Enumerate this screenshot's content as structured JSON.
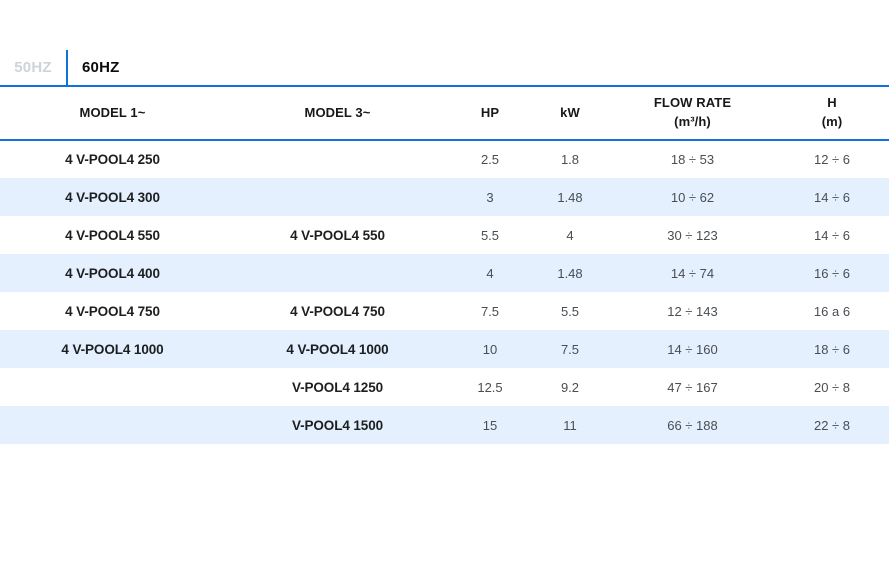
{
  "colors": {
    "accent_blue": "#0e74dc",
    "row_stripe": "#e4f0fd",
    "inactive_tab_gray": "#ccd4da",
    "text_dark": "#17181a"
  },
  "tabs": {
    "inactive": {
      "label": "50HZ"
    },
    "active": {
      "label": "60HZ"
    }
  },
  "table": {
    "columns": [
      {
        "label": "MODEL 1~",
        "sub": ""
      },
      {
        "label": "MODEL 3~",
        "sub": ""
      },
      {
        "label": "HP",
        "sub": ""
      },
      {
        "label": "kW",
        "sub": ""
      },
      {
        "label": "FLOW RATE",
        "sub": "(m³/h)"
      },
      {
        "label": "H",
        "sub": "(m)"
      }
    ],
    "rows": [
      [
        "4 V-POOL4 250",
        "",
        "2.5",
        "1.8",
        "18 ÷ 53",
        "12 ÷ 6"
      ],
      [
        "4 V-POOL4 300",
        "",
        "3",
        "1.48",
        "10 ÷ 62",
        "14 ÷ 6"
      ],
      [
        "4 V-POOL4 550",
        "4 V-POOL4 550",
        "5.5",
        "4",
        "30 ÷ 123",
        "14 ÷ 6"
      ],
      [
        "4 V-POOL4 400",
        "",
        "4",
        "1.48",
        "14 ÷ 74",
        "16 ÷ 6"
      ],
      [
        "4 V-POOL4 750",
        "4 V-POOL4 750",
        "7.5",
        "5.5",
        "12 ÷ 143",
        "16 a 6"
      ],
      [
        "4 V-POOL4 1000",
        "4 V-POOL4 1000",
        "10",
        "7.5",
        "14 ÷ 160",
        "18 ÷ 6"
      ],
      [
        "",
        "V-POOL4 1250",
        "12.5",
        "9.2",
        "47 ÷ 167",
        "20 ÷ 8"
      ],
      [
        "",
        "V-POOL4 1500",
        "15",
        "11",
        "66 ÷ 188",
        "22 ÷ 8"
      ]
    ]
  }
}
